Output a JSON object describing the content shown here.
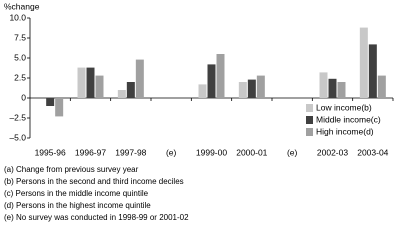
{
  "chart_data": {
    "type": "bar",
    "y_label": "%change",
    "categories": [
      "1995-96",
      "1996-97",
      "1997-98",
      "(e)",
      "1999-00",
      "2000-01",
      "(e)",
      "2002-03",
      "2003-04"
    ],
    "series": [
      {
        "name": "Low income(b)",
        "color": "#c8c8c8",
        "values": [
          0,
          3.8,
          1.0,
          null,
          1.7,
          2.0,
          null,
          3.2,
          8.8
        ]
      },
      {
        "name": "Middle income(c)",
        "color": "#404040",
        "values": [
          -1.0,
          3.8,
          2.0,
          null,
          4.2,
          2.3,
          null,
          2.4,
          6.7
        ]
      },
      {
        "name": "High income(d)",
        "color": "#a0a0a0",
        "values": [
          -2.3,
          2.8,
          4.8,
          null,
          5.5,
          2.8,
          null,
          2.0,
          2.8
        ]
      }
    ],
    "ylim": [
      -5,
      10
    ],
    "yticks": [
      {
        "value": -5,
        "label": "–5.0"
      },
      {
        "value": -2.5,
        "label": "–2.5"
      },
      0,
      2.5,
      {
        "value": 5,
        "label": "5.0"
      },
      7.5,
      {
        "value": 10,
        "label": "10.0"
      }
    ],
    "legend": "bottom-right",
    "notes": [
      "(a) Change from previous survey year",
      "(b) Persons in the second and third income deciles",
      "(c) Persons in the middle income quintile",
      "(d) Persons in the highest income quintile",
      "(e) No survey was conducted in 1998-99 or 2001-02"
    ]
  }
}
